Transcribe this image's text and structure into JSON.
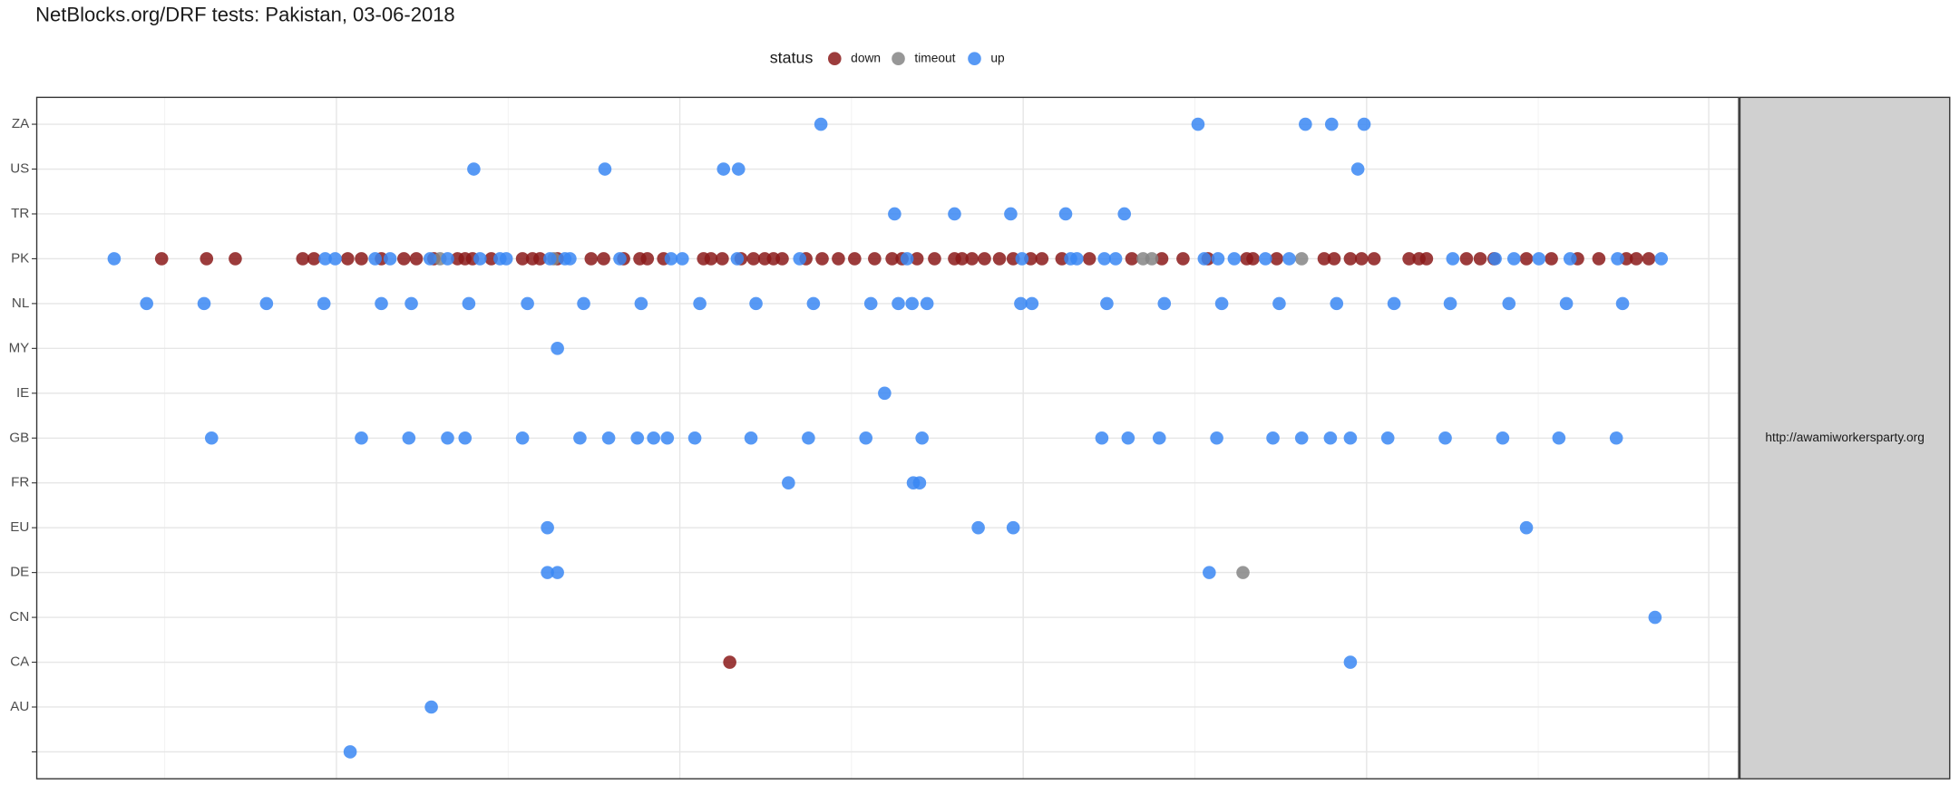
{
  "chart_data": {
    "type": "scatter",
    "title": "NetBlocks.org/DRF tests: Pakistan, 03-06-2018",
    "legend_title": "status",
    "facet": "http://awamiworkersparty.org",
    "categories": [
      null,
      "AU",
      "CA",
      "CN",
      "DE",
      "EU",
      "FR",
      "GB",
      "IE",
      "MY",
      "NL",
      "PK",
      "TR",
      "US",
      "ZA"
    ],
    "xlim": [
      29,
      1392
    ],
    "xticks": [
      269,
      544,
      819,
      1094,
      1368
    ],
    "xminor": [
      131.5,
      406.5,
      681.5,
      956.5,
      1231.5
    ],
    "grid": true,
    "series": [
      {
        "name": "down",
        "color": "#8b1a1a",
        "x": [
          129,
          165,
          188,
          242,
          251,
          278,
          289,
          305,
          323,
          333,
          347,
          366,
          372,
          378,
          393,
          418,
          426,
          432,
          446,
          473,
          483,
          499,
          512,
          518,
          531,
          563,
          569,
          578,
          593,
          603,
          612,
          619,
          626,
          645,
          658,
          671,
          684,
          700,
          714,
          722,
          734,
          748,
          764,
          770,
          778,
          788,
          800,
          811,
          825,
          834,
          850,
          872,
          906,
          930,
          947,
          967,
          998,
          1003,
          1022,
          1060,
          1068,
          1081,
          1090,
          1100,
          1128,
          1136,
          1142,
          1174,
          1185,
          1196,
          1222,
          1242,
          1263,
          1280,
          1302,
          1310,
          1320,
          584
        ],
        "y": [
          11,
          11,
          11,
          11,
          11,
          11,
          11,
          11,
          11,
          11,
          11,
          11,
          11,
          11,
          11,
          11,
          11,
          11,
          11,
          11,
          11,
          11,
          11,
          11,
          11,
          11,
          11,
          11,
          11,
          11,
          11,
          11,
          11,
          11,
          11,
          11,
          11,
          11,
          11,
          11,
          11,
          11,
          11,
          11,
          11,
          11,
          11,
          11,
          11,
          11,
          11,
          11,
          11,
          11,
          11,
          11,
          11,
          11,
          11,
          11,
          11,
          11,
          11,
          11,
          11,
          11,
          11,
          11,
          11,
          11,
          11,
          11,
          11,
          11,
          11,
          11,
          11,
          2
        ]
      },
      {
        "name": "timeout",
        "color": "#858585",
        "x": [
          352,
          443,
          915,
          922,
          1042,
          995
        ],
        "y": [
          11,
          11,
          11,
          11,
          11,
          4
        ]
      },
      {
        "name": "up",
        "color": "#3a87f3",
        "x": [
          657,
          959,
          1045,
          1066,
          1092,
          379,
          484,
          579,
          591,
          1087,
          716,
          764,
          809,
          853,
          900,
          91,
          260,
          268,
          300,
          312,
          344,
          358,
          384,
          400,
          405,
          440,
          452,
          456,
          496,
          537,
          546,
          590,
          640,
          726,
          818,
          857,
          862,
          884,
          893,
          964,
          975,
          988,
          1013,
          1032,
          1163,
          1197,
          1212,
          1232,
          1257,
          1295,
          1330,
          117,
          163,
          213,
          259,
          305,
          329,
          375,
          422,
          467,
          513,
          560,
          605,
          651,
          697,
          719,
          730,
          742,
          817,
          826,
          886,
          932,
          978,
          1024,
          1070,
          1116,
          1161,
          1208,
          1254,
          1299,
          446,
          708,
          169,
          289,
          327,
          358,
          372,
          418,
          464,
          487,
          510,
          523,
          534,
          556,
          601,
          647,
          693,
          738,
          882,
          903,
          928,
          974,
          1019,
          1042,
          1065,
          1081,
          1111,
          1157,
          1203,
          1248,
          1294,
          631,
          731,
          736,
          438,
          783,
          811,
          1222,
          438,
          446,
          968,
          1325,
          1081,
          345,
          280
        ],
        "y": [
          14,
          14,
          14,
          14,
          14,
          13,
          13,
          13,
          13,
          13,
          12,
          12,
          12,
          12,
          12,
          11,
          11,
          11,
          11,
          11,
          11,
          11,
          11,
          11,
          11,
          11,
          11,
          11,
          11,
          11,
          11,
          11,
          11,
          11,
          11,
          11,
          11,
          11,
          11,
          11,
          11,
          11,
          11,
          11,
          11,
          11,
          11,
          11,
          11,
          11,
          11,
          10,
          10,
          10,
          10,
          10,
          10,
          10,
          10,
          10,
          10,
          10,
          10,
          10,
          10,
          10,
          10,
          10,
          10,
          10,
          10,
          10,
          10,
          10,
          10,
          10,
          10,
          10,
          10,
          10,
          9,
          8,
          7,
          7,
          7,
          7,
          7,
          7,
          7,
          7,
          7,
          7,
          7,
          7,
          7,
          7,
          7,
          7,
          7,
          7,
          7,
          7,
          7,
          7,
          7,
          7,
          7,
          7,
          7,
          7,
          7,
          6,
          6,
          6,
          5,
          5,
          5,
          5,
          4,
          4,
          4,
          3,
          2,
          1,
          0
        ]
      }
    ]
  }
}
